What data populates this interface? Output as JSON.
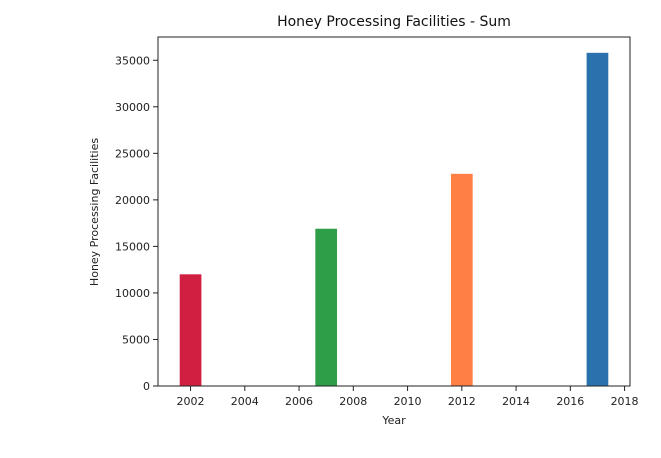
{
  "chart_data": {
    "type": "bar",
    "title": "Honey Processing Facilities - Sum",
    "xlabel": "Year",
    "ylabel": "Honey Processing Facilities",
    "x": [
      2002,
      2007,
      2012,
      2017
    ],
    "values": [
      12000,
      16900,
      22800,
      35800
    ],
    "colors": [
      "#d11f42",
      "#2e9e48",
      "#ff7f45",
      "#2a72ad"
    ],
    "xlim": [
      2000.8,
      2018.2
    ],
    "ylim": [
      0,
      37500
    ],
    "xticks": [
      "2002",
      "2004",
      "2006",
      "2008",
      "2010",
      "2012",
      "2014",
      "2016",
      "2018"
    ],
    "yticks": [
      "0",
      "5000",
      "10000",
      "15000",
      "20000",
      "25000",
      "30000",
      "35000"
    ],
    "grid": false
  }
}
